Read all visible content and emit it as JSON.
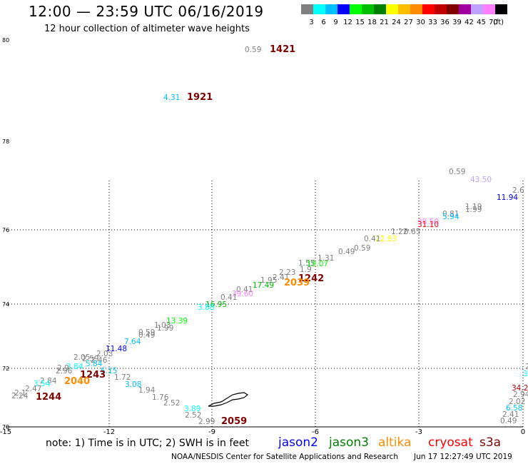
{
  "header": {
    "title": "12:00 — 23:59 UTC 06/16/2019",
    "subtitle": "12 hour collection of altimeter wave heights"
  },
  "scale": {
    "colors": [
      "#808080",
      "#00ffff",
      "#00bfff",
      "#0000ff",
      "#00ff00",
      "#00bf00",
      "#008000",
      "#ffff00",
      "#ffbf00",
      "#ff8c00",
      "#ff0000",
      "#bf0000",
      "#800000",
      "#a000a0",
      "#c0a0ff",
      "#ff80ff",
      "#000000"
    ],
    "labels": [
      "3",
      "6",
      "9",
      "12",
      "15",
      "18",
      "21",
      "24",
      "27",
      "30",
      "33",
      "36",
      "39",
      "42",
      "45",
      "70",
      "(ft)"
    ]
  },
  "map": {
    "x_ticks": [
      "-15",
      "-12",
      "-9",
      "-6",
      "-3",
      "0"
    ],
    "y_ticks": [
      "80",
      "78",
      "76",
      "74",
      "72",
      "70"
    ],
    "wave_heights": [
      {
        "v": "0.59",
        "c": "#808080"
      },
      {
        "v": "4.31",
        "c": "#00c0ff"
      },
      {
        "v": "0.59",
        "c": "#808080"
      },
      {
        "v": "43.50",
        "c": "#c0a0ff"
      },
      {
        "v": "2.6",
        "c": "#808080"
      },
      {
        "v": "11.94",
        "c": "#0000ff"
      },
      {
        "v": "1.19",
        "c": "#808080"
      },
      {
        "v": "1.99",
        "c": "#808080"
      },
      {
        "v": "0.81",
        "c": "#808080"
      },
      {
        "v": "5.94",
        "c": "#00c0ff"
      },
      {
        "v": "38.50",
        "c": "#ff80ff"
      },
      {
        "v": "31.10",
        "c": "#ff0000"
      },
      {
        "v": "1.22",
        "c": "#808080"
      },
      {
        "v": "0.65",
        "c": "#808080"
      },
      {
        "v": "22.83",
        "c": "#ffff00"
      },
      {
        "v": "0.41",
        "c": "#808080"
      },
      {
        "v": "0.59",
        "c": "#808080"
      },
      {
        "v": "0.49",
        "c": "#808080"
      },
      {
        "v": "1.31",
        "c": "#808080"
      },
      {
        "v": "1.55",
        "c": "#808080"
      },
      {
        "v": "19.07",
        "c": "#00ff00"
      },
      {
        "v": "1.9",
        "c": "#808080"
      },
      {
        "v": "2.23",
        "c": "#808080"
      },
      {
        "v": "2.41",
        "c": "#808080"
      },
      {
        "v": "1.95",
        "c": "#808080"
      },
      {
        "v": "17.49",
        "c": "#00bf00"
      },
      {
        "v": "0.41",
        "c": "#808080"
      },
      {
        "v": "39.60",
        "c": "#ff80ff"
      },
      {
        "v": "0.41",
        "c": "#808080"
      },
      {
        "v": "16.95",
        "c": "#00bf00"
      },
      {
        "v": "3.88",
        "c": "#00ffff"
      },
      {
        "v": "13.39",
        "c": "#00ff00"
      },
      {
        "v": "1.99",
        "c": "#808080"
      },
      {
        "v": "1.03",
        "c": "#808080"
      },
      {
        "v": "0.49",
        "c": "#808080"
      },
      {
        "v": "0.59",
        "c": "#808080"
      },
      {
        "v": "7.64",
        "c": "#00c0ff"
      },
      {
        "v": "11.48",
        "c": "#0000ff"
      },
      {
        "v": "2.03",
        "c": "#808080"
      },
      {
        "v": "2.05",
        "c": "#808080"
      },
      {
        "v": "2.59",
        "c": "#808080"
      },
      {
        "v": "2.46",
        "c": "#808080"
      },
      {
        "v": "5.84",
        "c": "#00c0ff"
      },
      {
        "v": "3.84",
        "c": "#00ffff"
      },
      {
        "v": "2.9",
        "c": "#808080"
      },
      {
        "v": "2.96",
        "c": "#808080"
      },
      {
        "v": "5.15",
        "c": "#00c0ff"
      },
      {
        "v": "1.72",
        "c": "#808080"
      },
      {
        "v": "3.08",
        "c": "#00c0ff"
      },
      {
        "v": "1.94",
        "c": "#808080"
      },
      {
        "v": "1.76",
        "c": "#808080"
      },
      {
        "v": "2.52",
        "c": "#808080"
      },
      {
        "v": "3.89",
        "c": "#00ffff"
      },
      {
        "v": "2.52",
        "c": "#808080"
      },
      {
        "v": "2.99",
        "c": "#808080"
      },
      {
        "v": "2.84",
        "c": "#808080"
      },
      {
        "v": "3.54",
        "c": "#00ffff"
      },
      {
        "v": "2.47",
        "c": "#808080"
      },
      {
        "v": "2.1",
        "c": "#808080"
      },
      {
        "v": "2.24",
        "c": "#808080"
      },
      {
        "v": "2",
        "c": "#808080"
      },
      {
        "v": "3.",
        "c": "#00ffff"
      },
      {
        "v": "34.2",
        "c": "#bf0000"
      },
      {
        "v": "2.94",
        "c": "#808080"
      },
      {
        "v": "2.02",
        "c": "#808080"
      },
      {
        "v": "6.58",
        "c": "#00c0ff"
      },
      {
        "v": "2.41",
        "c": "#808080"
      },
      {
        "v": "0.49",
        "c": "#808080"
      }
    ],
    "pass_times": [
      {
        "v": "1421",
        "c": "#800000"
      },
      {
        "v": "1921",
        "c": "#800000"
      },
      {
        "v": "1242",
        "c": "#800000"
      },
      {
        "v": "2039",
        "c": "#ff8c00"
      },
      {
        "v": "1243",
        "c": "#800000"
      },
      {
        "v": "2040",
        "c": "#ff8c00"
      },
      {
        "v": "1244",
        "c": "#800000"
      },
      {
        "v": "2059",
        "c": "#800000"
      }
    ]
  },
  "footer": {
    "note": "note: 1) Time is in UTC; 2) SWH is in feet",
    "satellites": [
      {
        "name": "jason2",
        "color": "#0000ff"
      },
      {
        "name": "jason3",
        "color": "#008000"
      },
      {
        "name": "altika",
        "color": "#ff8c00"
      },
      {
        "name": "cryosat",
        "color": "#ff0000"
      },
      {
        "name": "s3a",
        "color": "#800000"
      }
    ],
    "credit": "NOAA/NESDIS Center for Satellite Applications and Research",
    "timestamp": "Jun 17 12:27:49 UTC 2019"
  }
}
